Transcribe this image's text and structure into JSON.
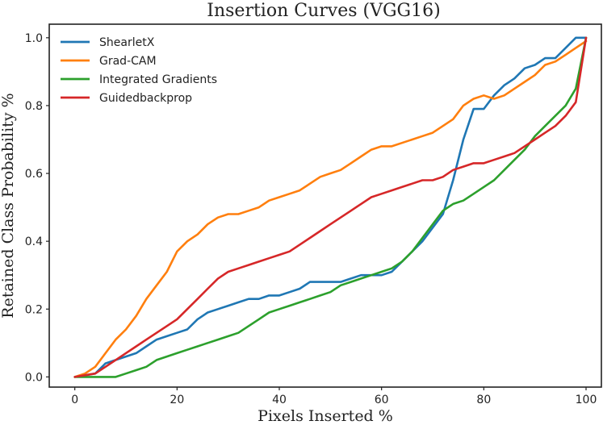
{
  "chart_data": {
    "type": "line",
    "title": "Insertion Curves (VGG16)",
    "xlabel": "Pixels Inserted %",
    "ylabel": "Retained Class Probability %",
    "xlim": [
      -5,
      103
    ],
    "ylim": [
      -0.03,
      1.04
    ],
    "xticks": [
      "0",
      "20",
      "40",
      "60",
      "80",
      "100"
    ],
    "yticks": [
      "0.0",
      "0.2",
      "0.4",
      "0.6",
      "0.8",
      "1.0"
    ],
    "grid": false,
    "legend": "top-left",
    "series": [
      {
        "name": "ShearletX",
        "color": "#1f77b4",
        "x": [
          0,
          2,
          4,
          6,
          8,
          10,
          12,
          14,
          16,
          18,
          20,
          22,
          24,
          26,
          28,
          30,
          32,
          34,
          36,
          38,
          40,
          42,
          44,
          46,
          48,
          50,
          52,
          54,
          56,
          58,
          60,
          62,
          64,
          66,
          68,
          70,
          72,
          74,
          76,
          78,
          80,
          82,
          84,
          86,
          88,
          90,
          92,
          94,
          96,
          98,
          100
        ],
        "y": [
          0.0,
          0.005,
          0.01,
          0.04,
          0.05,
          0.06,
          0.07,
          0.09,
          0.11,
          0.12,
          0.13,
          0.14,
          0.17,
          0.19,
          0.2,
          0.21,
          0.22,
          0.23,
          0.23,
          0.24,
          0.24,
          0.25,
          0.26,
          0.28,
          0.28,
          0.28,
          0.28,
          0.29,
          0.3,
          0.3,
          0.3,
          0.31,
          0.34,
          0.37,
          0.4,
          0.44,
          0.48,
          0.58,
          0.7,
          0.79,
          0.79,
          0.83,
          0.86,
          0.88,
          0.91,
          0.92,
          0.94,
          0.94,
          0.97,
          1.0,
          1.0
        ]
      },
      {
        "name": "Grad-CAM",
        "color": "#ff7f0e",
        "x": [
          0,
          2,
          4,
          6,
          8,
          10,
          12,
          14,
          16,
          18,
          20,
          22,
          24,
          26,
          28,
          30,
          32,
          34,
          36,
          38,
          40,
          42,
          44,
          46,
          48,
          50,
          52,
          54,
          56,
          58,
          60,
          62,
          64,
          66,
          68,
          70,
          72,
          74,
          76,
          78,
          80,
          82,
          84,
          86,
          88,
          90,
          92,
          94,
          96,
          98,
          100
        ],
        "y": [
          0.0,
          0.01,
          0.03,
          0.07,
          0.11,
          0.14,
          0.18,
          0.23,
          0.27,
          0.31,
          0.37,
          0.4,
          0.42,
          0.45,
          0.47,
          0.48,
          0.48,
          0.49,
          0.5,
          0.52,
          0.53,
          0.54,
          0.55,
          0.57,
          0.59,
          0.6,
          0.61,
          0.63,
          0.65,
          0.67,
          0.68,
          0.68,
          0.69,
          0.7,
          0.71,
          0.72,
          0.74,
          0.76,
          0.8,
          0.82,
          0.83,
          0.82,
          0.83,
          0.85,
          0.87,
          0.89,
          0.92,
          0.93,
          0.95,
          0.97,
          0.99
        ]
      },
      {
        "name": "Integrated Gradients",
        "color": "#2ca02c",
        "x": [
          0,
          2,
          4,
          6,
          8,
          10,
          12,
          14,
          16,
          18,
          20,
          22,
          24,
          26,
          28,
          30,
          32,
          34,
          36,
          38,
          40,
          42,
          44,
          46,
          48,
          50,
          52,
          54,
          56,
          58,
          60,
          62,
          64,
          66,
          68,
          70,
          72,
          74,
          76,
          78,
          80,
          82,
          84,
          86,
          88,
          90,
          92,
          94,
          96,
          98,
          100
        ],
        "y": [
          0.0,
          0.0,
          0.0,
          0.0,
          0.0,
          0.01,
          0.02,
          0.03,
          0.05,
          0.06,
          0.07,
          0.08,
          0.09,
          0.1,
          0.11,
          0.12,
          0.13,
          0.15,
          0.17,
          0.19,
          0.2,
          0.21,
          0.22,
          0.23,
          0.24,
          0.25,
          0.27,
          0.28,
          0.29,
          0.3,
          0.31,
          0.32,
          0.34,
          0.37,
          0.41,
          0.45,
          0.49,
          0.51,
          0.52,
          0.54,
          0.56,
          0.58,
          0.61,
          0.64,
          0.67,
          0.71,
          0.74,
          0.77,
          0.8,
          0.85,
          1.0
        ]
      },
      {
        "name": "Guidedbackprop",
        "color": "#d62728",
        "x": [
          0,
          2,
          4,
          6,
          8,
          10,
          12,
          14,
          16,
          18,
          20,
          22,
          24,
          26,
          28,
          30,
          32,
          34,
          36,
          38,
          40,
          42,
          44,
          46,
          48,
          50,
          52,
          54,
          56,
          58,
          60,
          62,
          64,
          66,
          68,
          70,
          72,
          74,
          76,
          78,
          80,
          82,
          84,
          86,
          88,
          90,
          92,
          94,
          96,
          98,
          100
        ],
        "y": [
          0.0,
          0.005,
          0.01,
          0.03,
          0.05,
          0.07,
          0.09,
          0.11,
          0.13,
          0.15,
          0.17,
          0.2,
          0.23,
          0.26,
          0.29,
          0.31,
          0.32,
          0.33,
          0.34,
          0.35,
          0.36,
          0.37,
          0.39,
          0.41,
          0.43,
          0.45,
          0.47,
          0.49,
          0.51,
          0.53,
          0.54,
          0.55,
          0.56,
          0.57,
          0.58,
          0.58,
          0.59,
          0.61,
          0.62,
          0.63,
          0.63,
          0.64,
          0.65,
          0.66,
          0.68,
          0.7,
          0.72,
          0.74,
          0.77,
          0.81,
          1.0
        ]
      }
    ]
  }
}
